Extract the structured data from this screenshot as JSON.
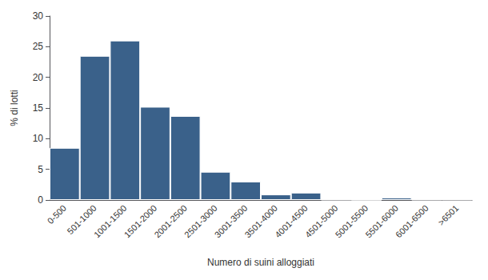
{
  "chart_data": {
    "type": "bar",
    "categories": [
      "0-500",
      "501-1000",
      "1001-1500",
      "1501-2000",
      "2001-2500",
      "2501-3000",
      "3001-3500",
      "3501-4000",
      "4001-4500",
      "4501-5000",
      "5001-5500",
      "5501-6000",
      "6001-6500",
      ">6501"
    ],
    "values": [
      8.5,
      23.5,
      26.0,
      15.2,
      13.7,
      4.6,
      3.0,
      0.9,
      1.2,
      0.05,
      0.0,
      0.4,
      0.05,
      0.05
    ],
    "color": "#3A618A",
    "xlabel": "Numero di suini alloggiati",
    "ylabel": "% di lotti",
    "ylim": [
      0,
      30
    ],
    "yticks": [
      0,
      5,
      10,
      15,
      20,
      25,
      30
    ],
    "grid": false
  }
}
